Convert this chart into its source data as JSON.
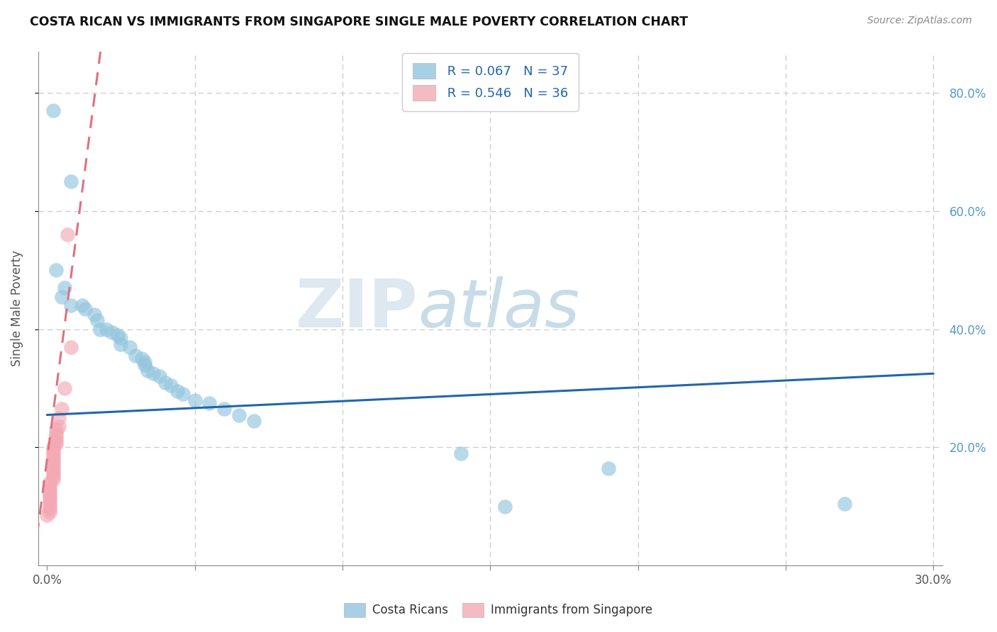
{
  "title": "COSTA RICAN VS IMMIGRANTS FROM SINGAPORE SINGLE MALE POVERTY CORRELATION CHART",
  "source": "Source: ZipAtlas.com",
  "ylabel": "Single Male Poverty",
  "legend_blue_r": "R = 0.067",
  "legend_blue_n": "N = 37",
  "legend_pink_r": "R = 0.546",
  "legend_pink_n": "N = 36",
  "blue_color": "#92c5de",
  "pink_color": "#f4a9b4",
  "trend_blue_color": "#2166ac",
  "trend_pink_color": "#e07080",
  "watermark_zip": "ZIP",
  "watermark_atlas": "atlas",
  "blue_scatter": [
    [
      0.002,
      0.77
    ],
    [
      0.008,
      0.65
    ],
    [
      0.003,
      0.5
    ],
    [
      0.006,
      0.47
    ],
    [
      0.005,
      0.455
    ],
    [
      0.008,
      0.44
    ],
    [
      0.012,
      0.44
    ],
    [
      0.013,
      0.435
    ],
    [
      0.016,
      0.425
    ],
    [
      0.017,
      0.415
    ],
    [
      0.018,
      0.4
    ],
    [
      0.02,
      0.4
    ],
    [
      0.022,
      0.395
    ],
    [
      0.024,
      0.39
    ],
    [
      0.025,
      0.385
    ],
    [
      0.025,
      0.375
    ],
    [
      0.028,
      0.37
    ],
    [
      0.03,
      0.355
    ],
    [
      0.032,
      0.35
    ],
    [
      0.033,
      0.345
    ],
    [
      0.033,
      0.34
    ],
    [
      0.034,
      0.33
    ],
    [
      0.036,
      0.325
    ],
    [
      0.038,
      0.32
    ],
    [
      0.04,
      0.31
    ],
    [
      0.042,
      0.305
    ],
    [
      0.044,
      0.295
    ],
    [
      0.046,
      0.29
    ],
    [
      0.05,
      0.28
    ],
    [
      0.055,
      0.275
    ],
    [
      0.06,
      0.265
    ],
    [
      0.065,
      0.255
    ],
    [
      0.07,
      0.245
    ],
    [
      0.14,
      0.19
    ],
    [
      0.155,
      0.1
    ],
    [
      0.27,
      0.105
    ],
    [
      0.19,
      0.165
    ]
  ],
  "pink_scatter": [
    [
      0.0,
      0.085
    ],
    [
      0.001,
      0.09
    ],
    [
      0.001,
      0.095
    ],
    [
      0.001,
      0.1
    ],
    [
      0.001,
      0.105
    ],
    [
      0.001,
      0.11
    ],
    [
      0.001,
      0.115
    ],
    [
      0.001,
      0.12
    ],
    [
      0.001,
      0.125
    ],
    [
      0.001,
      0.13
    ],
    [
      0.001,
      0.135
    ],
    [
      0.001,
      0.14
    ],
    [
      0.002,
      0.145
    ],
    [
      0.002,
      0.15
    ],
    [
      0.002,
      0.155
    ],
    [
      0.002,
      0.16
    ],
    [
      0.002,
      0.165
    ],
    [
      0.002,
      0.17
    ],
    [
      0.002,
      0.175
    ],
    [
      0.002,
      0.18
    ],
    [
      0.002,
      0.185
    ],
    [
      0.002,
      0.19
    ],
    [
      0.002,
      0.195
    ],
    [
      0.002,
      0.2
    ],
    [
      0.003,
      0.205
    ],
    [
      0.003,
      0.21
    ],
    [
      0.003,
      0.215
    ],
    [
      0.003,
      0.22
    ],
    [
      0.003,
      0.225
    ],
    [
      0.003,
      0.23
    ],
    [
      0.004,
      0.235
    ],
    [
      0.004,
      0.25
    ],
    [
      0.005,
      0.265
    ],
    [
      0.006,
      0.3
    ],
    [
      0.008,
      0.37
    ],
    [
      0.007,
      0.56
    ]
  ],
  "xlim": [
    -0.003,
    0.303
  ],
  "ylim": [
    0.0,
    0.87
  ],
  "x_ticks": [
    0.0,
    0.05,
    0.1,
    0.15,
    0.2,
    0.25,
    0.3
  ],
  "y_ticks": [
    0.2,
    0.4,
    0.6,
    0.8
  ],
  "blue_trendline_x": [
    0.0,
    0.3
  ],
  "blue_trendline_y": [
    0.255,
    0.325
  ],
  "pink_trendline_x": [
    0.0,
    0.011
  ],
  "pink_trendline_y": [
    0.18,
    0.6
  ]
}
